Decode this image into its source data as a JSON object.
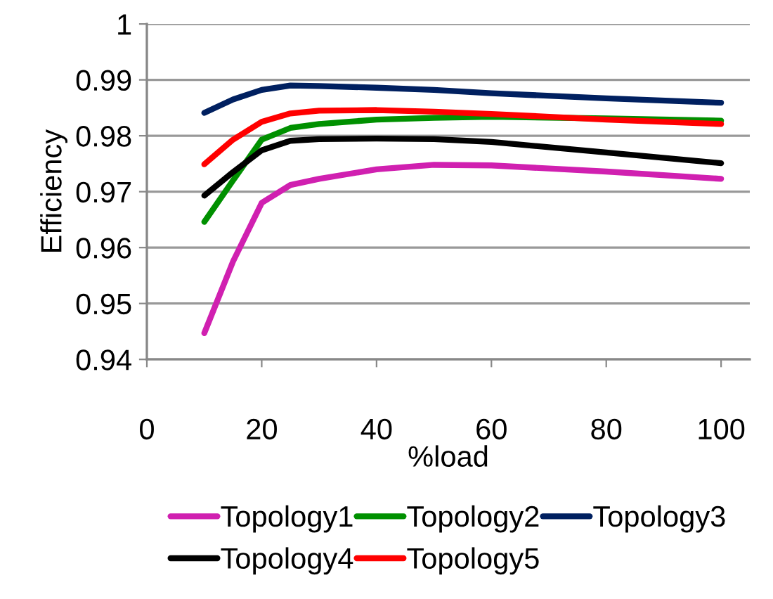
{
  "chart_data": {
    "type": "line",
    "xlabel": "%load",
    "ylabel": "Efficiency",
    "x": [
      10,
      15,
      20,
      25,
      30,
      40,
      50,
      60,
      80,
      100
    ],
    "series": [
      {
        "name": "Topology1",
        "color": "#d020b0",
        "values": [
          0.9447,
          0.9575,
          0.968,
          0.9712,
          0.9723,
          0.974,
          0.9748,
          0.9747,
          0.9736,
          0.9723
        ]
      },
      {
        "name": "Topology2",
        "color": "#009000",
        "values": [
          0.9646,
          0.972,
          0.9793,
          0.9814,
          0.9821,
          0.9829,
          0.9832,
          0.9834,
          0.9831,
          0.9827
        ]
      },
      {
        "name": "Topology3",
        "color": "#002060",
        "values": [
          0.9841,
          0.9865,
          0.9882,
          0.989,
          0.9889,
          0.9886,
          0.9882,
          0.9876,
          0.9867,
          0.9859
        ]
      },
      {
        "name": "Topology4",
        "color": "#000000",
        "values": [
          0.9693,
          0.9735,
          0.9774,
          0.9791,
          0.9794,
          0.9795,
          0.9794,
          0.9789,
          0.977,
          0.9751
        ]
      },
      {
        "name": "Topology5",
        "color": "#ff0000",
        "values": [
          0.9749,
          0.9793,
          0.9825,
          0.984,
          0.9845,
          0.9846,
          0.9843,
          0.9839,
          0.9829,
          0.9821
        ]
      }
    ],
    "xlim": [
      0,
      105
    ],
    "xticks": [
      0,
      20,
      40,
      60,
      80,
      100
    ],
    "ylim": [
      0.94,
      1
    ],
    "yticks": [
      0.94,
      0.95,
      0.96,
      0.97,
      0.98,
      0.99,
      1
    ],
    "grid": "y",
    "legend": "bottom",
    "marker": "none",
    "line_style": "solid"
  }
}
